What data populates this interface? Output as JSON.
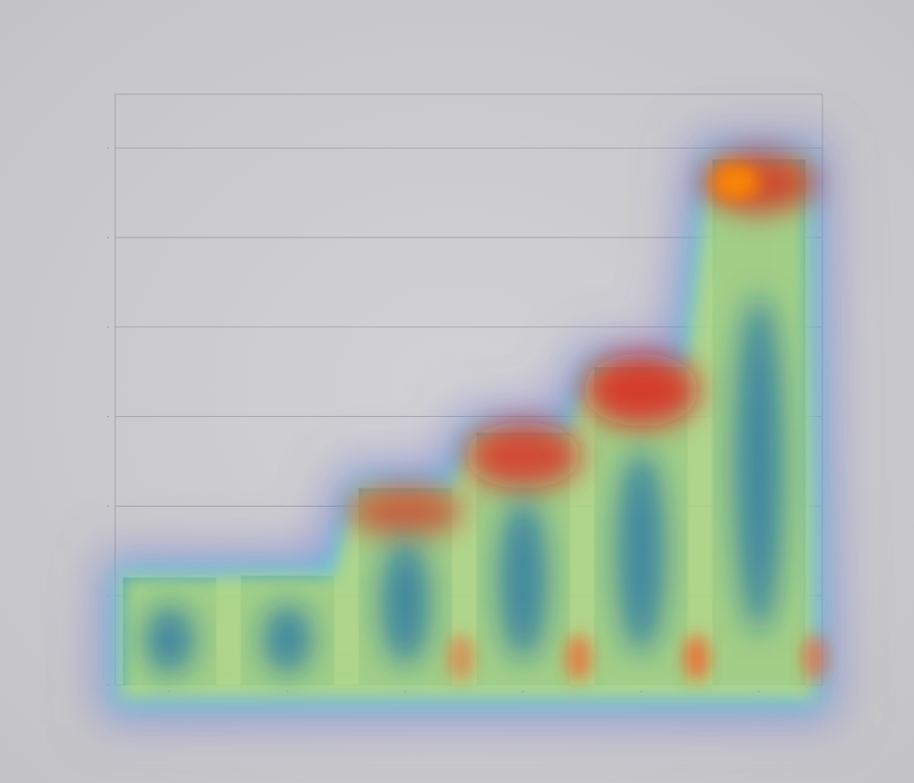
{
  "chart_data": {
    "type": "bar",
    "title": "",
    "xlabel": "",
    "ylabel": "",
    "categories": [
      "",
      "",
      "",
      "",
      "",
      ""
    ],
    "values": [
      1.2,
      1.22,
      2.2,
      2.82,
      3.55,
      5.87
    ],
    "ylim": [
      0,
      6.6
    ],
    "yticks": [
      0,
      1,
      2,
      3,
      4,
      5,
      6
    ],
    "grid": true,
    "legend": "none",
    "overlay": "attention-heatmap",
    "colors": {
      "background": "#cdcdcf",
      "bar": "#3f7f95",
      "grid": "#9a9aa6",
      "heat_low": "#3b6bd6",
      "heat_mid": "#e8e84a",
      "heat_high": "#e60a0a"
    },
    "heat_intensity": [
      0.25,
      0.35,
      0.62,
      0.82,
      0.9,
      0.75
    ]
  }
}
